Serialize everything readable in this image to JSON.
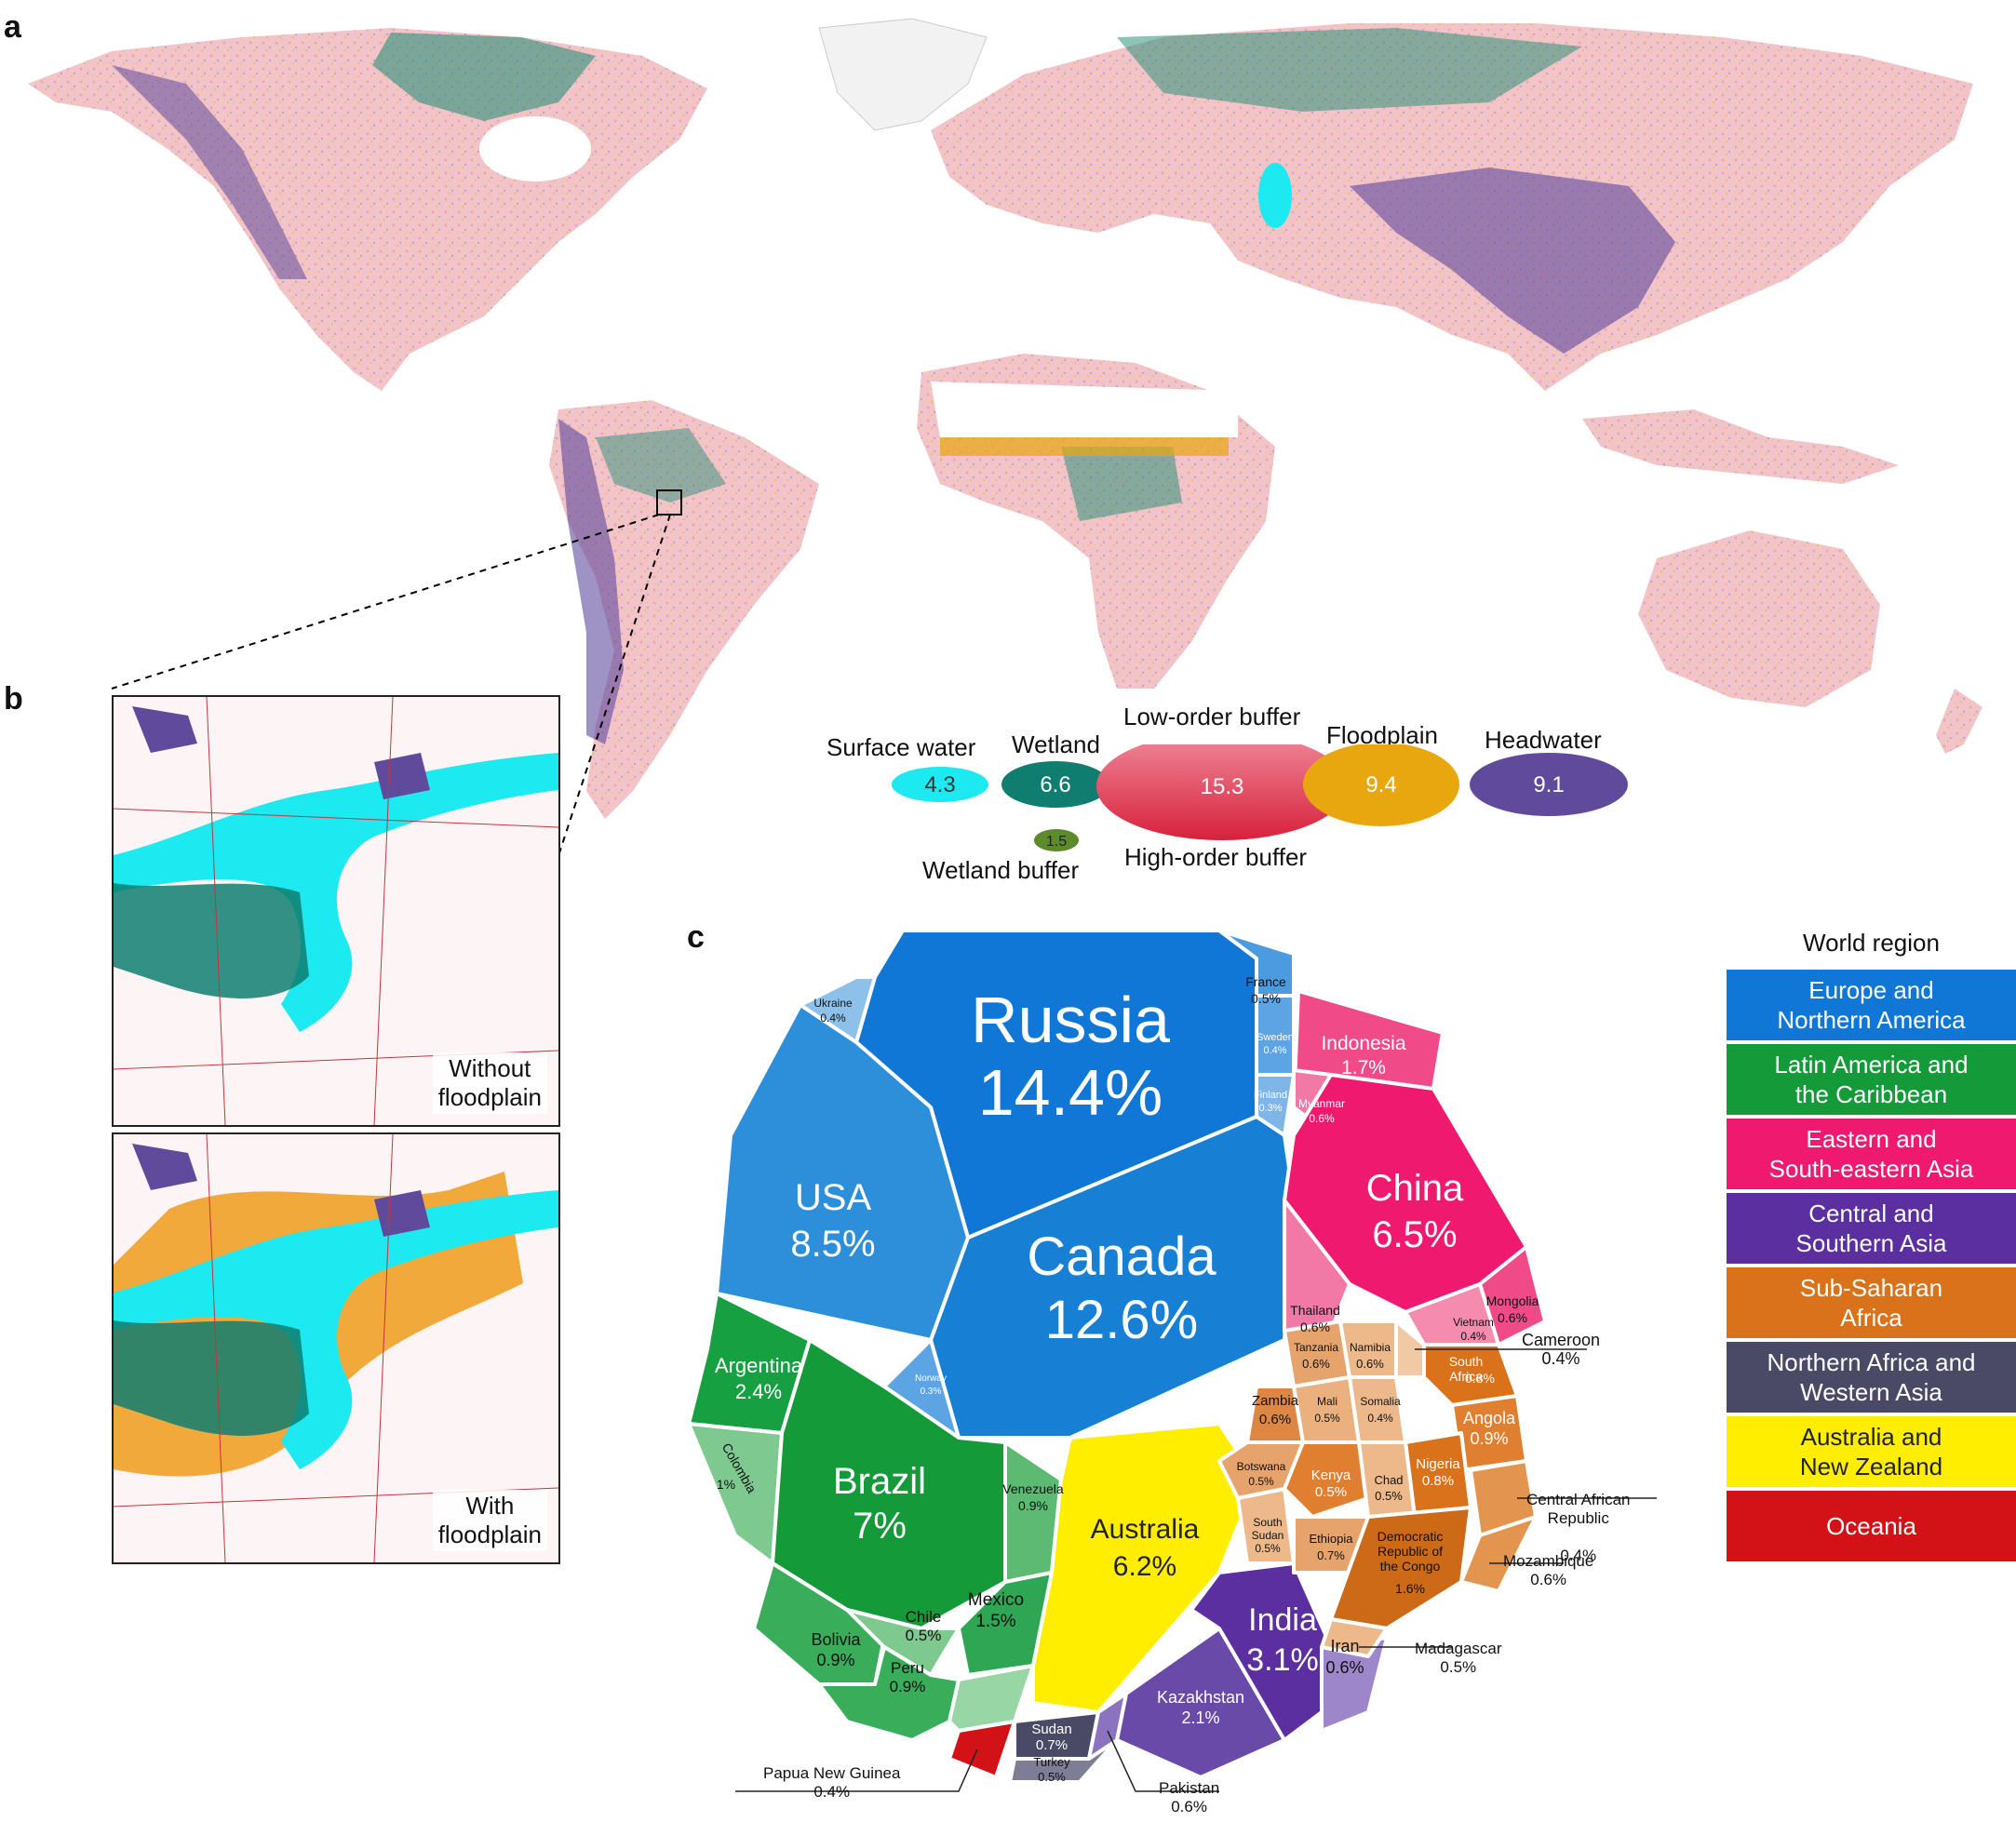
{
  "panels": {
    "a": "a",
    "b": "b",
    "c": "c"
  },
  "inset": {
    "top_label": "Without\nfloodplain",
    "bottom_label": "With\nfloodplain"
  },
  "legend": {
    "surface_water": {
      "label": "Surface water",
      "value": "4.3",
      "color": "#1de9f0"
    },
    "wetland": {
      "label": "Wetland",
      "value": "6.6",
      "color": "#0f7e70"
    },
    "wetland_buffer": {
      "label": "Wetland buffer",
      "value": "1.5",
      "color": "#5d8a2a"
    },
    "low_order_buffer": {
      "label": "Low-order buffer",
      "value": "15.3",
      "color_top": "#f08a9a",
      "color_bottom": "#d8203c"
    },
    "high_order_buffer": {
      "label": "High-order buffer"
    },
    "floodplain": {
      "label": "Floodplain",
      "value": "9.4",
      "color": "#e9a70f"
    },
    "headwater": {
      "label": "Headwater",
      "value": "9.1",
      "color": "#5f4a9c"
    }
  },
  "region_legend": {
    "title": "World region",
    "items": [
      {
        "label": "Europe and\nNorthern America",
        "color": "#1177d6"
      },
      {
        "label": "Latin America and\nthe Caribbean",
        "color": "#159a3a"
      },
      {
        "label": "Eastern and\nSouth-eastern Asia",
        "color": "#ef1a70"
      },
      {
        "label": "Central and\nSouthern Asia",
        "color": "#5b2fa0"
      },
      {
        "label": "Sub-Saharan\nAfrica",
        "color": "#d9721a"
      },
      {
        "label": "Northern Africa and\nWestern Asia",
        "color": "#4a4a66"
      },
      {
        "label": "Australia and\nNew Zealand",
        "color": "#ffee00"
      },
      {
        "label": "Oceania",
        "color": "#d31218"
      }
    ]
  },
  "countries": {
    "russia": {
      "name": "Russia",
      "pct": "14.4%"
    },
    "canada": {
      "name": "Canada",
      "pct": "12.6%"
    },
    "usa": {
      "name": "USA",
      "pct": "8.5%"
    },
    "brazil": {
      "name": "Brazil",
      "pct": "7%"
    },
    "china": {
      "name": "China",
      "pct": "6.5%"
    },
    "australia": {
      "name": "Australia",
      "pct": "6.2%"
    },
    "india": {
      "name": "India",
      "pct": "3.1%"
    },
    "argentina": {
      "name": "Argentina",
      "pct": "2.4%"
    },
    "kazakhstan": {
      "name": "Kazakhstan",
      "pct": "2.1%"
    },
    "indonesia": {
      "name": "Indonesia",
      "pct": "1.7%"
    },
    "drc": {
      "name": "Democratic\nRepublic of\nthe Congo",
      "pct": "1.6%"
    },
    "mexico": {
      "name": "Mexico",
      "pct": "1.5%"
    },
    "colombia": {
      "name": "Colombia",
      "pct": "1%"
    },
    "venezuela": {
      "name": "Venezuela",
      "pct": "0.9%"
    },
    "bolivia": {
      "name": "Bolivia",
      "pct": "0.9%"
    },
    "peru": {
      "name": "Peru",
      "pct": "0.9%"
    },
    "angola": {
      "name": "Angola",
      "pct": "0.9%"
    },
    "nigeria": {
      "name": "Nigeria",
      "pct": "0.8%"
    },
    "south_africa": {
      "name": "South\nAfrica",
      "pct": "0.8%"
    },
    "sudan": {
      "name": "Sudan",
      "pct": "0.7%"
    },
    "ethiopia": {
      "name": "Ethiopia",
      "pct": "0.7%"
    },
    "iran": {
      "name": "Iran",
      "pct": "0.6%"
    },
    "thailand": {
      "name": "Thailand",
      "pct": "0.6%"
    },
    "mongolia": {
      "name": "Mongolia",
      "pct": "0.6%"
    },
    "myanmar": {
      "name": "Myanmar",
      "pct": "0.6%"
    },
    "tanzania": {
      "name": "Tanzania",
      "pct": "0.6%"
    },
    "namibia": {
      "name": "Namibia",
      "pct": "0.6%"
    },
    "zambia": {
      "name": "Zambia",
      "pct": "0.6%"
    },
    "mozambique": {
      "name": "Mozambique",
      "pct": "0.6%"
    },
    "pakistan": {
      "name": "Pakistan",
      "pct": "0.6%"
    },
    "france": {
      "name": "France",
      "pct": "0.5%"
    },
    "chile": {
      "name": "Chile",
      "pct": "0.5%"
    },
    "mali": {
      "name": "Mali",
      "pct": "0.5%"
    },
    "botswana": {
      "name": "Botswana",
      "pct": "0.5%"
    },
    "kenya": {
      "name": "Kenya",
      "pct": "0.5%"
    },
    "chad": {
      "name": "Chad",
      "pct": "0.5%"
    },
    "south_sudan": {
      "name": "South\nSudan",
      "pct": "0.5%"
    },
    "turkey": {
      "name": "Turkey",
      "pct": "0.5%"
    },
    "madagascar": {
      "name": "Madagascar",
      "pct": "0.5%"
    },
    "sweden": {
      "name": "Sweden",
      "pct": "0.4%"
    },
    "ukraine": {
      "name": "Ukraine",
      "pct": "0.4%"
    },
    "vietnam": {
      "name": "Vietnam",
      "pct": "0.4%"
    },
    "somalia": {
      "name": "Somalia",
      "pct": "0.4%"
    },
    "cameroon": {
      "name": "Cameroon",
      "pct": "0.4%"
    },
    "central_african_republic": {
      "name": "Central African\nRepublic",
      "pct": "0.4%"
    },
    "papua_new_guinea": {
      "name": "Papua New Guinea",
      "pct": "0.4%"
    },
    "finland": {
      "name": "Finland",
      "pct": "0.3%"
    },
    "norway": {
      "name": "Norway",
      "pct": "0.3%"
    }
  }
}
